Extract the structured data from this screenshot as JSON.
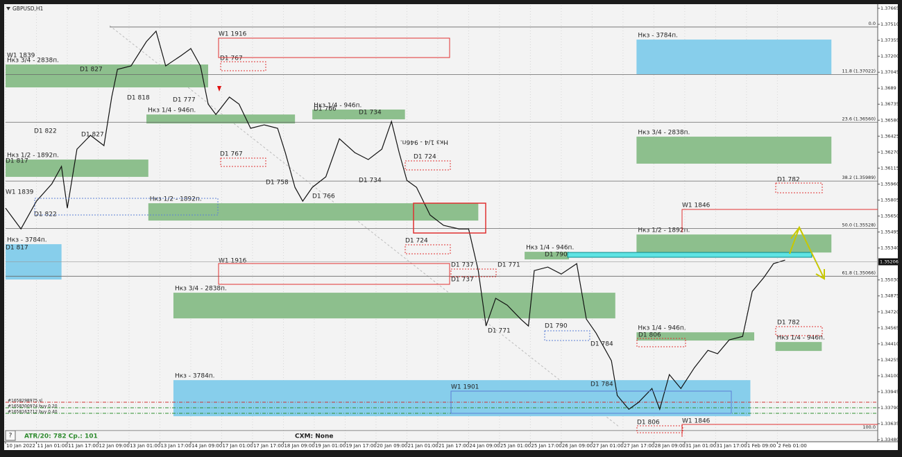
{
  "chart_data": {
    "type": "line",
    "title": "GBPUSD,H1",
    "xlim": [
      0,
      452
    ],
    "ylim": [
      1.33467,
      1.37692
    ],
    "grid": true,
    "color": "#111111",
    "xticks": [
      {
        "value": 0,
        "label": "10 Jan 2022"
      },
      {
        "value": 16,
        "label": "11 Jan 01:00"
      },
      {
        "value": 32,
        "label": "11 Jan 17:00"
      },
      {
        "value": 48,
        "label": "12 Jan 09:00"
      },
      {
        "value": 64,
        "label": "13 Jan 01:00"
      },
      {
        "value": 80,
        "label": "13 Jan 17:00"
      },
      {
        "value": 96,
        "label": "14 Jan 09:00"
      },
      {
        "value": 112,
        "label": "17 Jan 01:00"
      },
      {
        "value": 128,
        "label": "17 Jan 17:00"
      },
      {
        "value": 144,
        "label": "18 Jan 09:00"
      },
      {
        "value": 160,
        "label": "19 Jan 01:00"
      },
      {
        "value": 176,
        "label": "19 Jan 17:00"
      },
      {
        "value": 192,
        "label": "20 Jan 09:00"
      },
      {
        "value": 208,
        "label": "21 Jan 01:00"
      },
      {
        "value": 224,
        "label": "21 Jan 17:00"
      },
      {
        "value": 240,
        "label": "24 Jan 09:00"
      },
      {
        "value": 256,
        "label": "25 Jan 01:00"
      },
      {
        "value": 272,
        "label": "25 Jan 17:00"
      },
      {
        "value": 288,
        "label": "26 Jan 09:00"
      },
      {
        "value": 304,
        "label": "27 Jan 01:00"
      },
      {
        "value": 320,
        "label": "27 Jan 17:00"
      },
      {
        "value": 336,
        "label": "28 Jan 09:00"
      },
      {
        "value": 352,
        "label": "31 Jan 01:00"
      },
      {
        "value": 368,
        "label": "31 Jan 17:00"
      },
      {
        "value": 384,
        "label": "1 Feb 09:00"
      },
      {
        "value": 400,
        "label": "2 Feb 01:00"
      }
    ],
    "yticks": [
      1.37665,
      {
        "value": 1.3751,
        "label": "1.37510"
      },
      1.37355,
      {
        "value": 1.372,
        "label": "1.37200"
      },
      1.37045,
      1.3689,
      1.36735,
      {
        "value": 1.3658,
        "label": "1.36580"
      },
      1.36425,
      {
        "value": 1.3627,
        "label": "1.36270"
      },
      1.36115,
      {
        "value": 1.3596,
        "label": "1.35960"
      },
      1.35805,
      {
        "value": 1.3565,
        "label": "1.35650"
      },
      1.35495,
      {
        "value": 1.3534,
        "label": "1.35340"
      },
      {
        "value": 1.3503,
        "label": "1.35030"
      },
      1.34875,
      {
        "value": 1.3472,
        "label": "1.34720"
      },
      1.34565,
      {
        "value": 1.3441,
        "label": "1.34410"
      },
      1.34255,
      {
        "value": 1.341,
        "label": "1.34100"
      },
      1.33945,
      {
        "value": 1.3379,
        "label": "1.33790"
      },
      1.33635,
      {
        "value": 1.3348,
        "label": "1.33480"
      }
    ],
    "current_price": 1.35206,
    "x": [
      0,
      8,
      16,
      24,
      29,
      32,
      37,
      44,
      51,
      55,
      58,
      65,
      73,
      78,
      83,
      91,
      96,
      101,
      105,
      109,
      116,
      121,
      127,
      134,
      141,
      145,
      150,
      154,
      159,
      166,
      173,
      181,
      188,
      195,
      200,
      204,
      208,
      213,
      220,
      227,
      235,
      240,
      245,
      249,
      254,
      260,
      267,
      271,
      274,
      281,
      288,
      296,
      301,
      306,
      314,
      317,
      323,
      328,
      335,
      339,
      344,
      350,
      357,
      364,
      369,
      375,
      382,
      387,
      393,
      398,
      404
    ],
    "values": [
      1.35727,
      1.35525,
      1.35794,
      1.35962,
      1.36131,
      1.35727,
      1.36299,
      1.36433,
      1.36333,
      1.36804,
      1.37073,
      1.37106,
      1.37342,
      1.37443,
      1.37106,
      1.37207,
      1.37275,
      1.37106,
      1.36736,
      1.36635,
      1.36804,
      1.36736,
      1.36501,
      1.36534,
      1.36501,
      1.36265,
      1.35929,
      1.35794,
      1.35929,
      1.3603,
      1.364,
      1.36265,
      1.36198,
      1.36299,
      1.36568,
      1.36265,
      1.35996,
      1.35929,
      1.3566,
      1.35559,
      1.35525,
      1.35525,
      1.35121,
      1.34583,
      1.34852,
      1.34785,
      1.3465,
      1.34583,
      1.35121,
      1.35155,
      1.35087,
      1.35188,
      1.3465,
      1.34515,
      1.34246,
      1.3391,
      1.33775,
      1.33842,
      1.33977,
      1.33775,
      1.34112,
      1.33977,
      1.34179,
      1.34347,
      1.34314,
      1.34448,
      1.34482,
      1.34919,
      1.35054,
      1.35188,
      1.35222
    ],
    "zones": [
      {
        "label": "Нкз 3/4 - 2838п.",
        "x": [
          0,
          105
        ],
        "y": [
          1.36898,
          1.3712
        ],
        "color": "#8dbf8d"
      },
      {
        "label": "Нкз 1/4 - 946п.",
        "x": [
          73,
          150
        ],
        "y": [
          1.36548,
          1.36635
        ],
        "color": "#8dbf8d"
      },
      {
        "label": "Нкз 1/4 - 946п.",
        "x": [
          159,
          207
        ],
        "y": [
          1.36588,
          1.36683
        ],
        "color": "#8dbf8d"
      },
      {
        "label": "Нкз 1/2 - 1892п.",
        "x": [
          0,
          74
        ],
        "y": [
          1.3603,
          1.36198
        ],
        "color": "#8dbf8d"
      },
      {
        "label": "Нкз 1/2 - 1892п.",
        "x": [
          74,
          245
        ],
        "y": [
          1.35606,
          1.35774
        ],
        "color": "#8dbf8d"
      },
      {
        "label": "Нкз - 3784п.",
        "x": [
          0,
          29
        ],
        "y": [
          1.35034,
          1.35377
        ],
        "color": "#87ceeb"
      },
      {
        "label": "Нкз 3/4 - 2838п.",
        "x": [
          87,
          316
        ],
        "y": [
          1.34657,
          1.34906
        ],
        "color": "#8dbf8d"
      },
      {
        "label": "Нкз - 3784п.",
        "x": [
          87,
          386
        ],
        "y": [
          1.33708,
          1.34058
        ],
        "color": "#87ceeb"
      },
      {
        "label": "Нкз - 3784п.",
        "x": [
          327,
          428
        ],
        "y": [
          1.37026,
          1.37362
        ],
        "color": "#87ceeb"
      },
      {
        "label": "Нкз 3/4 - 2838п.",
        "x": [
          327,
          428
        ],
        "y": [
          1.36158,
          1.3642
        ],
        "color": "#8dbf8d"
      },
      {
        "label": "Нкз 1/2 - 1892п.",
        "x": [
          327,
          428
        ],
        "y": [
          1.35296,
          1.35471
        ],
        "color": "#8dbf8d"
      },
      {
        "label": "Нкз 1/4 - 946п.",
        "x": [
          327,
          388
        ],
        "y": [
          1.34442,
          1.34522
        ],
        "color": "#8dbf8d"
      },
      {
        "label": "Нкз 1/4 - 946п.",
        "x": [
          399,
          423
        ],
        "y": [
          1.34341,
          1.34428
        ],
        "color": "#8dbf8d"
      },
      {
        "label": "Нкз 1/4 - 946п.",
        "x": [
          269,
          292
        ],
        "y": [
          1.35229,
          1.35303
        ],
        "color": "#8dbf8d"
      }
    ],
    "levels": [
      {
        "label": "0.0",
        "price": 1.37484
      },
      {
        "label": "11.8 (1.37022)",
        "price": 1.37022
      },
      {
        "label": "23.6 (1.36560)",
        "price": 1.3656
      },
      {
        "label": "38.2 (1.35989)",
        "price": 1.35989
      },
      {
        "label": "50.0 (1.35528)",
        "price": 1.35528
      },
      {
        "label": "61.8 (1.35066)",
        "price": 1.35066
      },
      {
        "label": "100.0",
        "price": 1.33569
      }
    ],
    "annotations": [
      "W1 1839",
      "D1 827",
      "D1 818",
      "D1 777",
      "D1 767",
      "W1 1916",
      "D1 822",
      "D1 827",
      "D1 817",
      "D1 767",
      "W1 1839",
      "D1 822",
      "D1 817",
      "D1 758",
      "D1 766",
      "D1 734",
      "D1 734",
      "D1 724",
      "D1 724",
      "W1 1916",
      "D1 737",
      "D1 737",
      "D1 771",
      "D1 790",
      "D1 771",
      "D1 790",
      "D1 784",
      "D1 784",
      "W1 1901",
      "D1 806",
      "D1 806",
      "W1 1846",
      "W1 1846",
      "D1 782",
      "D1 782",
      "Нкз 1/4 - 946п.",
      "D1 766"
    ],
    "orders": [
      "#1658298975 sl",
      "#1658300974 buy 0.20",
      "#1658163712 buy 0.40"
    ],
    "status": {
      "atr": "ATR/20: 782  Ср.: 101",
      "cxm": "CXM: None",
      "help": "?"
    }
  }
}
